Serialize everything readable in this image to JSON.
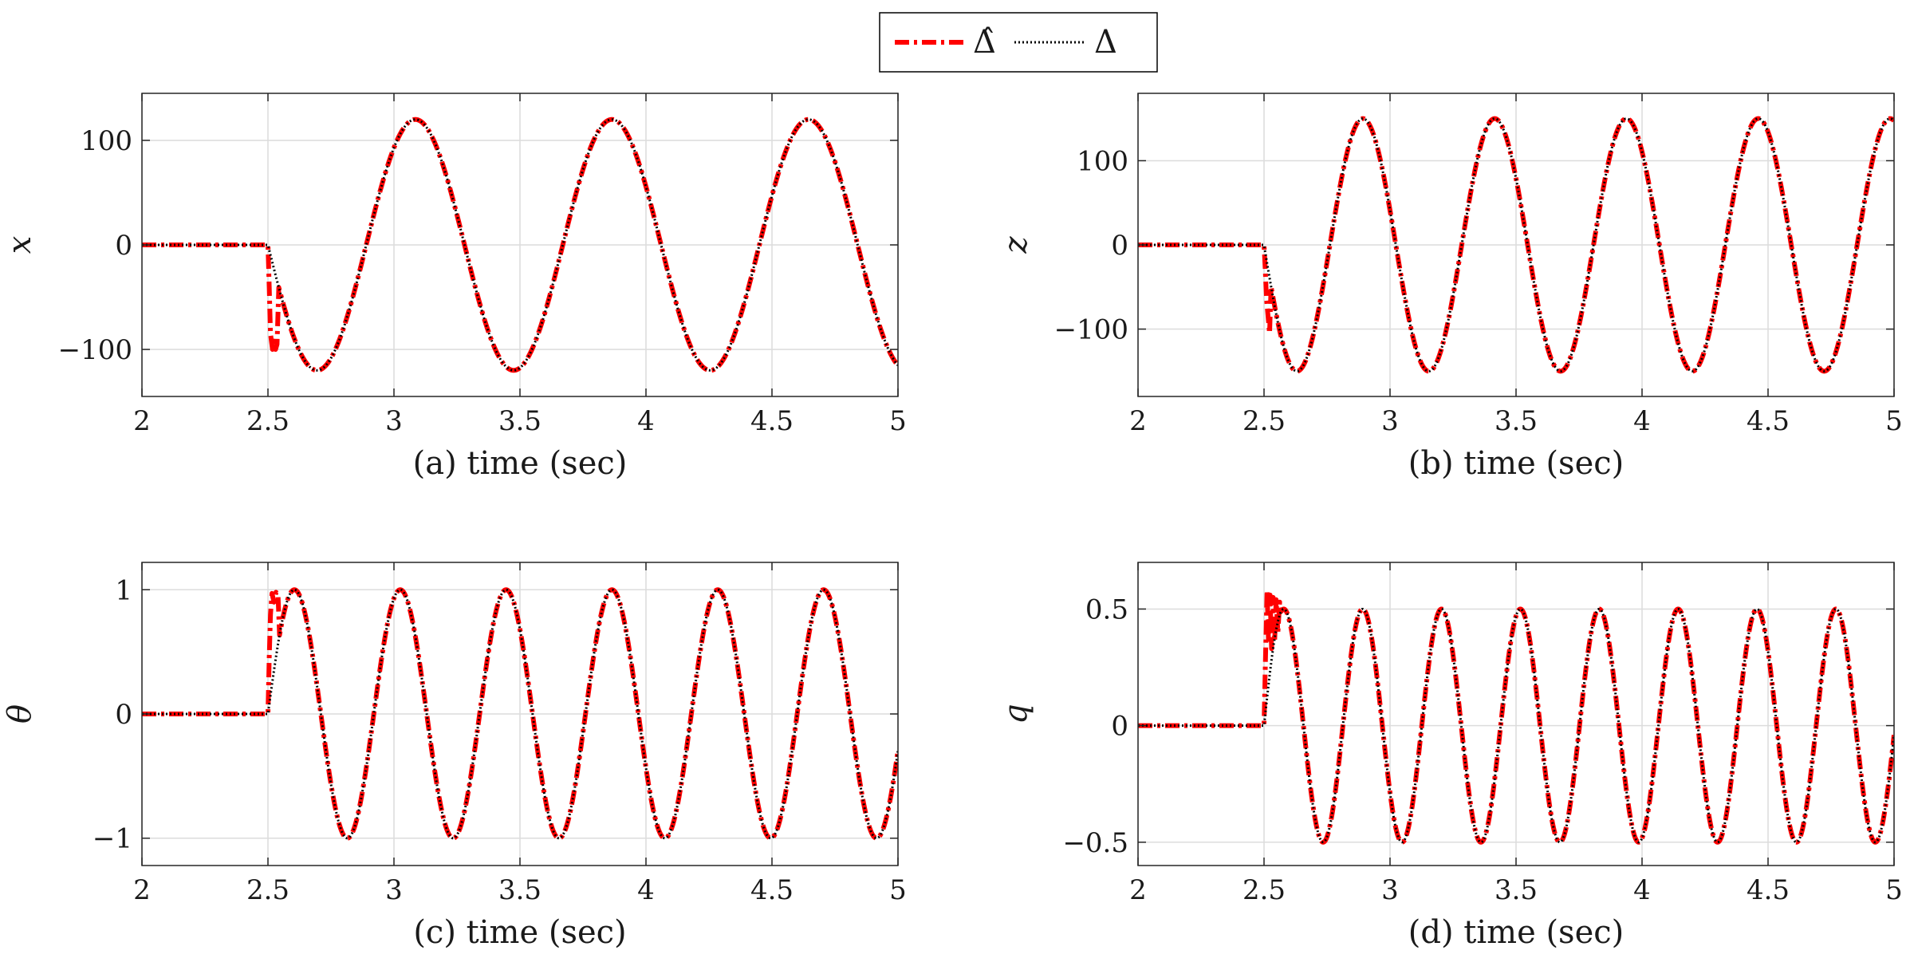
{
  "legend": {
    "placement": "top-center",
    "entries": [
      {
        "label": "Δ̂",
        "color": "#ff0000",
        "style": "dash-dot"
      },
      {
        "label": "Δ",
        "color": "#000000",
        "style": "dotted"
      }
    ]
  },
  "chart_data": [
    {
      "type": "line",
      "ylabel": "x",
      "xlabel": "(a) time (sec)",
      "xlim": [
        2,
        5
      ],
      "ylim": [
        -145,
        145
      ],
      "xticks": [
        2,
        2.5,
        3,
        3.5,
        4,
        4.5,
        5
      ],
      "xtick_labels": [
        "2",
        "2.5",
        "3",
        "3.5",
        "4",
        "4.5",
        "5"
      ],
      "yticks": [
        -100,
        0,
        100
      ],
      "ytick_labels": [
        "−100",
        "0",
        "100"
      ],
      "grid": true,
      "signal": {
        "onset": 2.5,
        "amplitude": 120,
        "period": 0.78,
        "shape": "-sin"
      },
      "series": [
        {
          "name": "Δ̂",
          "color": "#ff0000",
          "transient": [
            [
              2.5,
              0
            ],
            [
              2.505,
              -40
            ],
            [
              2.51,
              -85
            ],
            [
              2.518,
              -100
            ],
            [
              2.524,
              -92
            ],
            [
              2.53,
              -100
            ],
            [
              2.536,
              -95
            ]
          ]
        },
        {
          "name": "Δ",
          "color": "#000000",
          "transient": []
        }
      ]
    },
    {
      "type": "line",
      "ylabel": "z",
      "xlabel": "(b) time (sec)",
      "xlim": [
        2,
        5
      ],
      "ylim": [
        -180,
        180
      ],
      "xticks": [
        2,
        2.5,
        3,
        3.5,
        4,
        4.5,
        5
      ],
      "xtick_labels": [
        "2",
        "2.5",
        "3",
        "3.5",
        "4",
        "4.5",
        "5"
      ],
      "yticks": [
        -100,
        0,
        100
      ],
      "ytick_labels": [
        "−100",
        "0",
        "100"
      ],
      "grid": true,
      "signal": {
        "onset": 2.5,
        "amplitude": 150,
        "period": 0.523,
        "shape": "-sin"
      },
      "series": [
        {
          "name": "Δ̂",
          "color": "#ff0000",
          "transient": [
            [
              2.5,
              0
            ],
            [
              2.505,
              -30
            ],
            [
              2.51,
              -65
            ],
            [
              2.516,
              -85
            ],
            [
              2.522,
              -105
            ]
          ]
        },
        {
          "name": "Δ",
          "color": "#000000",
          "transient": []
        }
      ]
    },
    {
      "type": "line",
      "ylabel": "θ",
      "xlabel": "(c) time (sec)",
      "xlim": [
        2,
        5
      ],
      "ylim": [
        -1.22,
        1.22
      ],
      "xticks": [
        2,
        2.5,
        3,
        3.5,
        4,
        4.5,
        5
      ],
      "xtick_labels": [
        "2",
        "2.5",
        "3",
        "3.5",
        "4",
        "4.5",
        "5"
      ],
      "yticks": [
        -1,
        0,
        1
      ],
      "ytick_labels": [
        "−1",
        "0",
        "1"
      ],
      "grid": true,
      "signal": {
        "onset": 2.5,
        "amplitude": 1,
        "period": 0.42,
        "shape": "sin"
      },
      "series": [
        {
          "name": "Δ̂",
          "color": "#ff0000",
          "transient": [
            [
              2.5,
              0
            ],
            [
              2.505,
              0.45
            ],
            [
              2.51,
              0.8
            ],
            [
              2.516,
              0.97
            ],
            [
              2.524,
              0.9
            ],
            [
              2.532,
              0.98
            ],
            [
              2.54,
              0.95
            ]
          ]
        },
        {
          "name": "Δ",
          "color": "#000000",
          "transient": []
        }
      ]
    },
    {
      "type": "line",
      "ylabel": "q",
      "xlabel": "(d) time (sec)",
      "xlim": [
        2,
        5
      ],
      "ylim": [
        -0.6,
        0.7
      ],
      "xticks": [
        2,
        2.5,
        3,
        3.5,
        4,
        4.5,
        5
      ],
      "xtick_labels": [
        "2",
        "2.5",
        "3",
        "3.5",
        "4",
        "4.5",
        "5"
      ],
      "yticks": [
        -0.5,
        0,
        0.5
      ],
      "ytick_labels": [
        "−0.5",
        "0",
        "0.5"
      ],
      "grid": true,
      "signal": {
        "onset": 2.5,
        "amplitude": 0.5,
        "period": 0.313,
        "shape": "sin"
      },
      "series": [
        {
          "name": "Δ̂",
          "color": "#ff0000",
          "transient": [
            [
              2.5,
              0
            ],
            [
              2.506,
              0.3
            ],
            [
              2.512,
              0.58
            ],
            [
              2.518,
              0.35
            ],
            [
              2.524,
              0.56
            ],
            [
              2.53,
              0.33
            ],
            [
              2.536,
              0.55
            ],
            [
              2.542,
              0.36
            ],
            [
              2.548,
              0.54
            ],
            [
              2.555,
              0.4
            ],
            [
              2.562,
              0.53
            ]
          ]
        },
        {
          "name": "Δ",
          "color": "#000000",
          "transient": []
        }
      ]
    }
  ]
}
